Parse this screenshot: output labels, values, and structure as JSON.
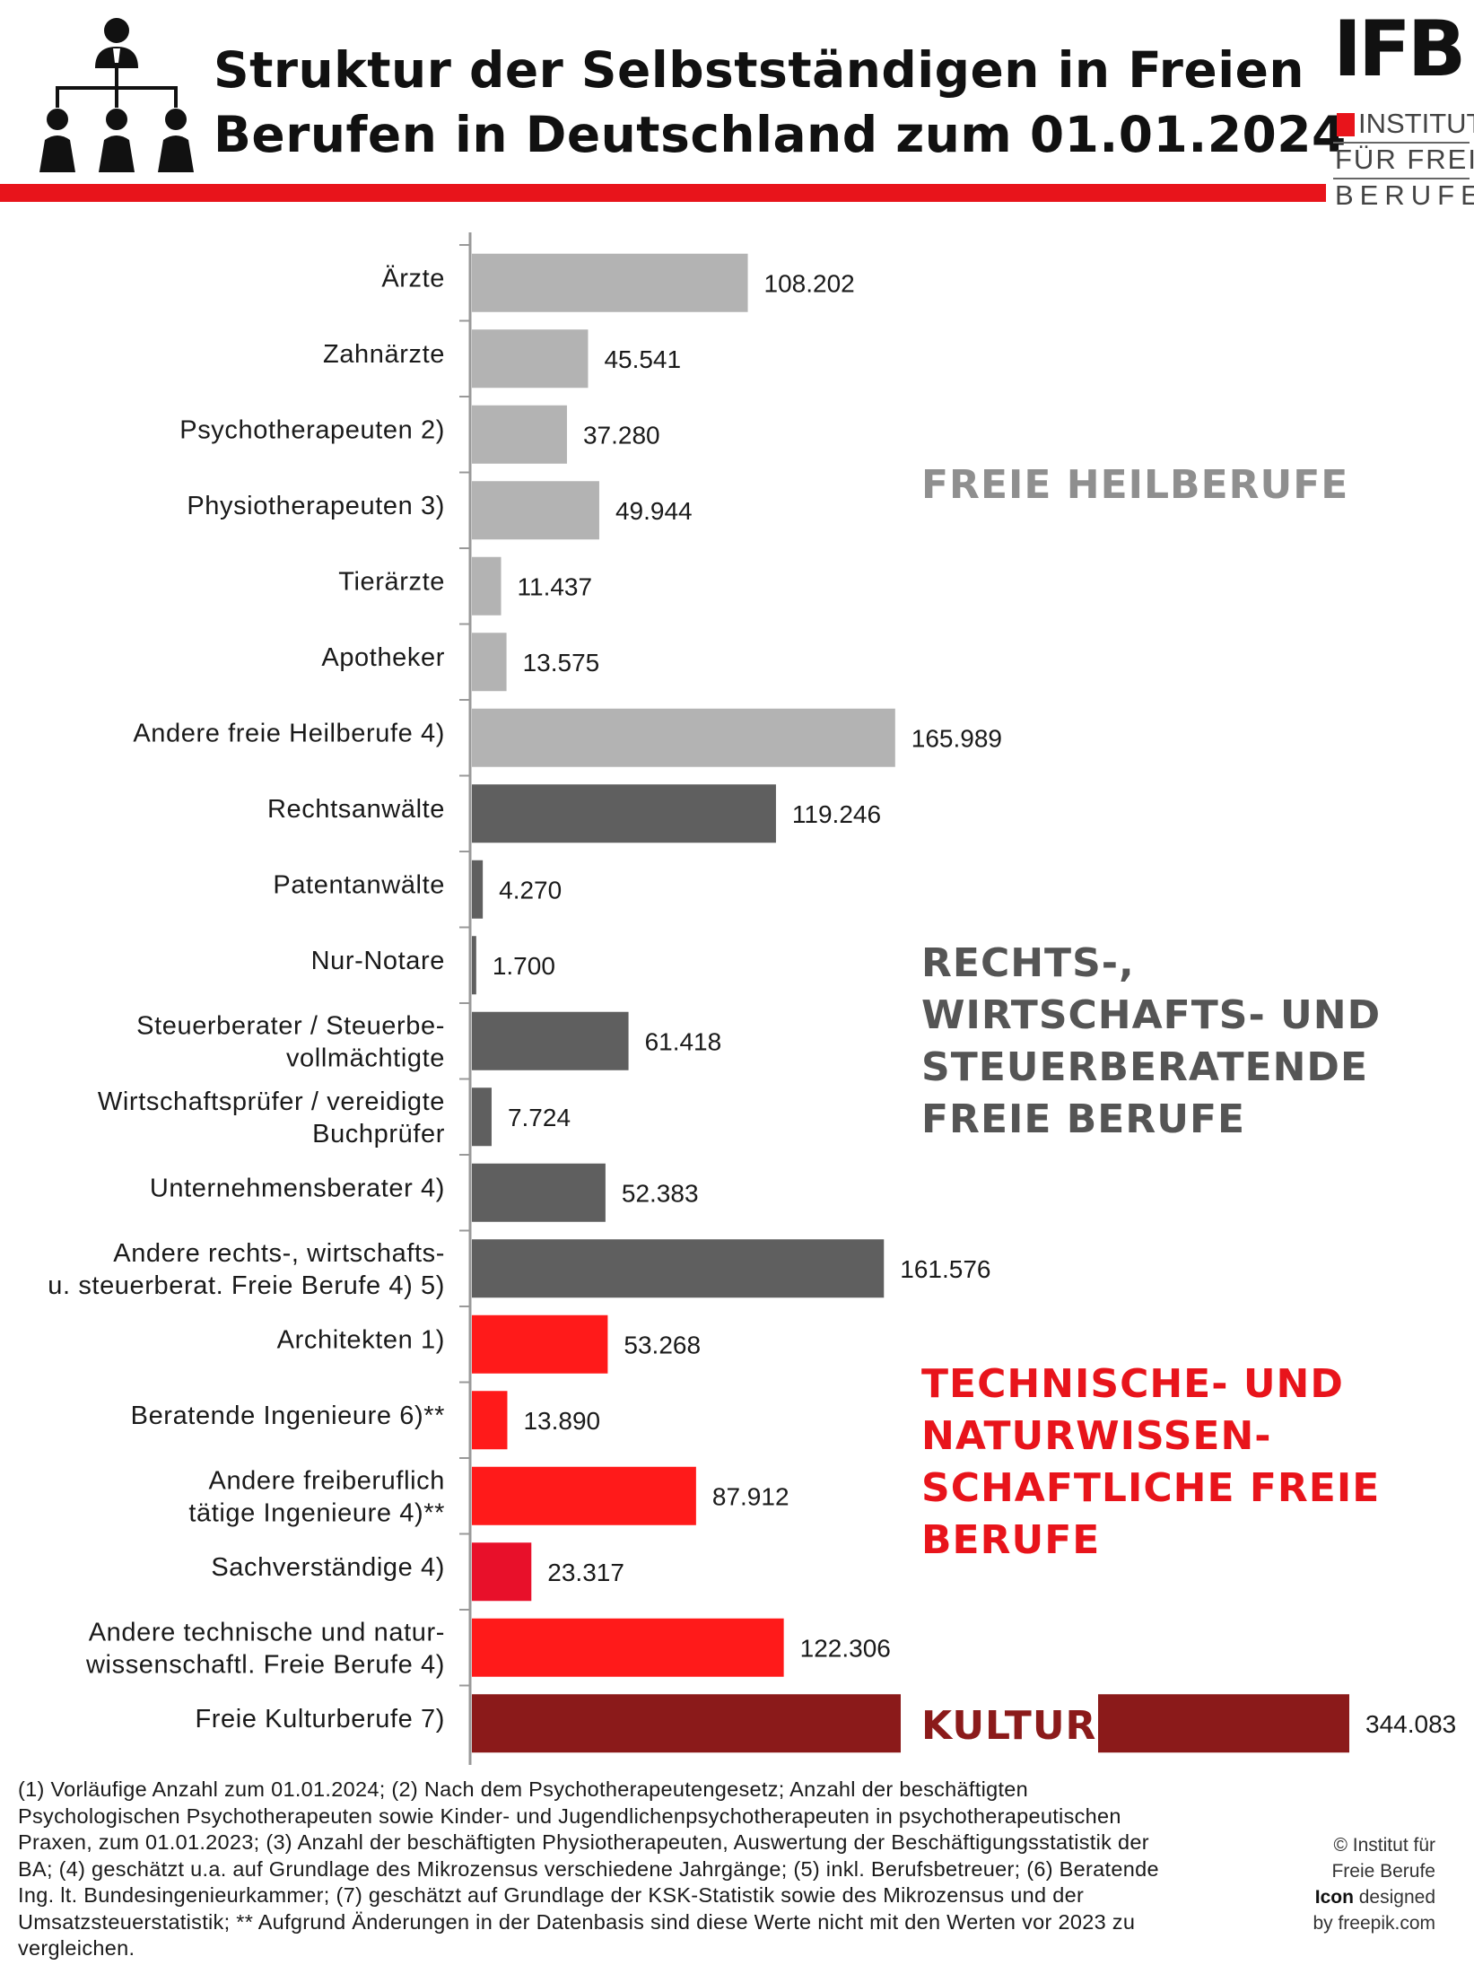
{
  "header": {
    "title_line1": "Struktur der Selbstständigen in Freien",
    "title_line2": "Berufen in Deutschland zum 01.01.2024",
    "icon": "organization-chart-people-icon"
  },
  "logo": {
    "mark": "IFB",
    "line1": "INSTITUT",
    "line2": "FÜR FREIE",
    "line3": "BERUFE",
    "accent_color": "#e8141b"
  },
  "colors": {
    "heilberufe": "#b3b3b3",
    "rechts": "#5f5f5f",
    "technik": "#ff1a1a",
    "technik_alt": "#e8102a",
    "kultur": "#8b1a1a",
    "heilberufe_text": "#8f8f8f",
    "rechts_text": "#555555",
    "technik_text": "#e8141b",
    "kultur_text": "#8b1a1a"
  },
  "chart_data": {
    "type": "bar",
    "orientation": "horizontal",
    "title": "Struktur der Selbstständigen in Freien Berufen in Deutschland zum 01.01.2024",
    "categories": [
      [
        "Ärzte"
      ],
      [
        "Zahnärzte"
      ],
      [
        "Psychotherapeuten 2)"
      ],
      [
        "Physiotherapeuten 3)"
      ],
      [
        "Tierärzte"
      ],
      [
        "Apotheker"
      ],
      [
        "Andere freie Heilberufe 4)"
      ],
      [
        "Rechtsanwälte"
      ],
      [
        "Patentanwälte"
      ],
      [
        "Nur-Notare"
      ],
      [
        "Steuerberater / Steuerbe-",
        "vollmächtigte"
      ],
      [
        "Wirtschaftsprüfer / vereidigte",
        "Buchprüfer"
      ],
      [
        "Unternehmensberater 4)"
      ],
      [
        "Andere rechts-, wirtschafts-",
        "u. steuerberat. Freie Berufe 4) 5)"
      ],
      [
        "Architekten 1)"
      ],
      [
        "Beratende Ingenieure 6)**"
      ],
      [
        "Andere freiberuflich",
        "tätige Ingenieure 4)**"
      ],
      [
        "Sachverständige 4)"
      ],
      [
        "Andere technische und natur-",
        "wissenschaftl. Freie Berufe 4)"
      ],
      [
        "Freie Kulturberufe 7)"
      ]
    ],
    "values": [
      108202,
      45541,
      37280,
      49944,
      11437,
      13575,
      165989,
      119246,
      4270,
      1700,
      61418,
      7724,
      52383,
      161576,
      53268,
      13890,
      87912,
      23317,
      122306,
      344083
    ],
    "value_labels": [
      "108.202",
      "45.541",
      "37.280",
      "49.944",
      "11.437",
      "13.575",
      "165.989",
      "119.246",
      "4.270",
      "1.700",
      "61.418",
      "7.724",
      "52.383",
      "161.576",
      "53.268",
      "13.890",
      "87.912",
      "23.317",
      "122.306",
      "344.083"
    ],
    "groups": [
      "heilberufe",
      "heilberufe",
      "heilberufe",
      "heilberufe",
      "heilberufe",
      "heilberufe",
      "heilberufe",
      "rechts",
      "rechts",
      "rechts",
      "rechts",
      "rechts",
      "rechts",
      "rechts",
      "technik",
      "technik",
      "technik",
      "technik_alt",
      "technik",
      "kultur"
    ],
    "group_labels": {
      "heilberufe": [
        "FREIE HEILBERUFE"
      ],
      "rechts": [
        "RECHTS-,",
        "WIRTSCHAFTS-  UND",
        "STEUERBERATENDE",
        "FREIE BERUFE"
      ],
      "technik": [
        "TECHNISCHE- UND",
        "NATURWISSEN-",
        "SCHAFTLICHE FREIE",
        "BERUFE"
      ],
      "kultur": [
        "KULTUR"
      ]
    },
    "xlim": [
      0,
      344083
    ],
    "grid": false,
    "legend": "none"
  },
  "footnote": {
    "lines": [
      "(1) Vorläufige Anzahl zum 01.01.2024; (2) Nach dem Psychotherapeutengesetz; Anzahl der beschäftigten",
      "Psychologischen Psychotherapeuten sowie Kinder- und Jugendlichenpsychotherapeuten in psychotherapeutischen",
      "Praxen, zum 01.01.2023; (3) Anzahl der beschäftigten Physiotherapeuten, Auswertung der Beschäftigungsstatistik der",
      "BA; (4) geschätzt u.a. auf Grundlage des Mikrozensus verschiedene Jahrgänge; (5) inkl. Berufsbetreuer; (6) Beratende",
      "Ing. lt. Bundesingenieurkammer; (7) geschätzt auf Grundlage der KSK-Statistik sowie des Mikrozensus und der",
      "Umsatzsteuerstatistik; ** Aufgrund Änderungen in der Datenbasis sind diese Werte nicht mit den Werten vor 2023 zu",
      "vergleichen."
    ]
  },
  "credit": {
    "line1": "© Institut für",
    "line2": "Freie Berufe",
    "icon_word": "Icon",
    "designed": " designed",
    "line4": "by freepik.com"
  }
}
